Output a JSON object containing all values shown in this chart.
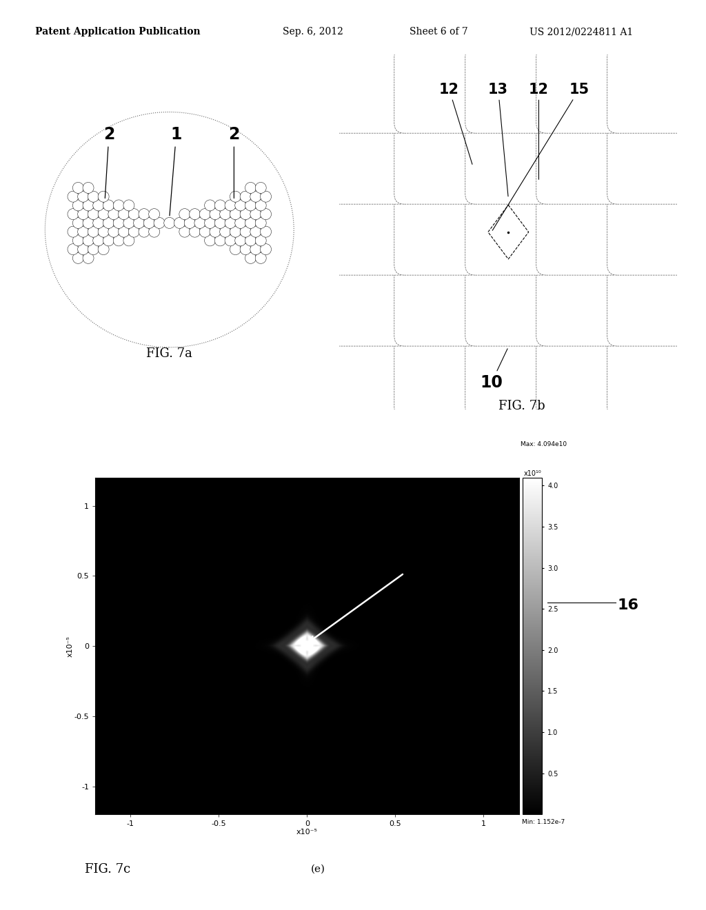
{
  "bg_color": "#ffffff",
  "header_text": "Patent Application Publication",
  "header_date": "Sep. 6, 2012",
  "header_sheet": "Sheet 6 of 7",
  "header_patent": "US 2012/0224811 A1",
  "fig7a_label": "FIG. 7a",
  "fig7b_label": "FIG. 7b",
  "fig7c_label": "FIG. 7c",
  "fig7c_sublabel": "(e)",
  "colorbar_max_text": "Max: 4.094e10",
  "colorbar_min_text": "Min: 1.152e-7",
  "colorbar_unit": "x10¹⁰",
  "colorbar_ticks": [
    0.5,
    1.0,
    1.5,
    2.0,
    2.5,
    3.0,
    3.5,
    4.0
  ],
  "xaxis_label": "x10⁻⁵",
  "yaxis_label": "x10⁻⁵",
  "panel_bg": "#b0b0b0",
  "plot_bg": "#2a2a2a",
  "label_16": "16",
  "label_1": "1",
  "label_2": "2",
  "label_10": "10",
  "label_12": "12",
  "label_13": "13",
  "label_15": "15"
}
